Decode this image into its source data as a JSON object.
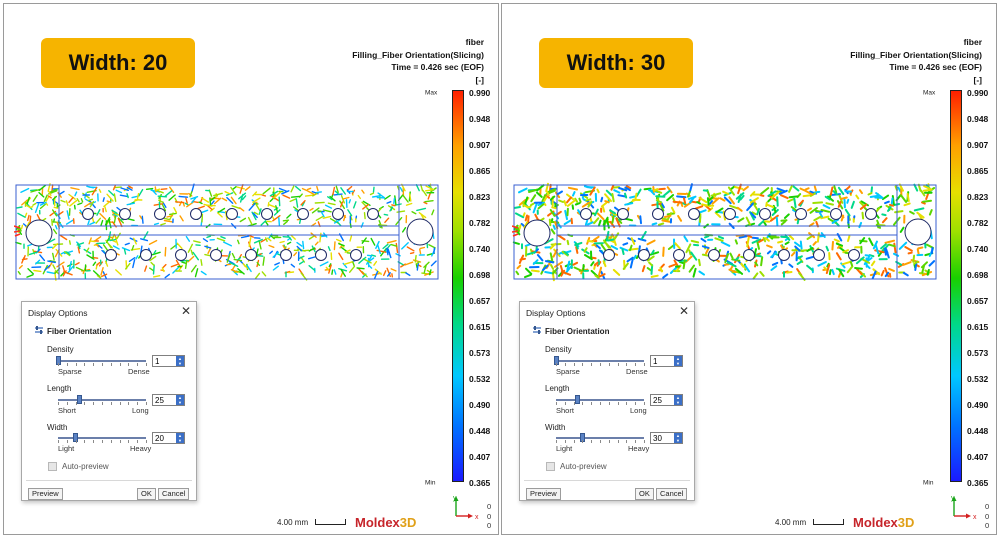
{
  "panels": [
    {
      "width_label": "Width: 20",
      "header": {
        "line1": "fiber",
        "line2": "Filling_Fiber Orientation(Slicing)",
        "line3": "Time = 0.426 sec (EOF)",
        "unit": "[-]"
      },
      "scale": {
        "max_label": "Max",
        "min_label": "Min",
        "ticks": [
          "0.990",
          "0.948",
          "0.907",
          "0.865",
          "0.823",
          "0.782",
          "0.740",
          "0.698",
          "0.657",
          "0.615",
          "0.573",
          "0.532",
          "0.490",
          "0.448",
          "0.407",
          "0.365"
        ]
      },
      "dialog": {
        "title": "Display Options",
        "close_glyph": "✕",
        "section": "Fiber Orientation",
        "density": {
          "label": "Density",
          "min_label": "Sparse",
          "max_label": "Dense",
          "value": "1",
          "fraction": 0.0
        },
        "length": {
          "label": "Length",
          "min_label": "Short",
          "max_label": "Long",
          "value": "25",
          "fraction": 0.24
        },
        "width": {
          "label": "Width",
          "min_label": "Light",
          "max_label": "Heavy",
          "value": "20",
          "fraction": 0.19
        },
        "auto_preview": "Auto-preview",
        "preview_button": "Preview",
        "ok_button": "OK",
        "cancel_button": "Cancel"
      },
      "axis": {
        "y": "y",
        "x": "x"
      },
      "coords": [
        "0",
        "0",
        "0"
      ],
      "ruler_label": "4.00 mm",
      "logo": {
        "main": "Moldex",
        "accent": "3D"
      }
    },
    {
      "width_label": "Width: 30",
      "header": {
        "line1": "fiber",
        "line2": "Filling_Fiber Orientation(Slicing)",
        "line3": "Time = 0.426 sec (EOF)",
        "unit": "[-]"
      },
      "scale": {
        "max_label": "Max",
        "min_label": "Min",
        "ticks": [
          "0.990",
          "0.948",
          "0.907",
          "0.865",
          "0.823",
          "0.782",
          "0.740",
          "0.698",
          "0.657",
          "0.615",
          "0.573",
          "0.532",
          "0.490",
          "0.448",
          "0.407",
          "0.365"
        ]
      },
      "dialog": {
        "title": "Display Options",
        "close_glyph": "✕",
        "section": "Fiber Orientation",
        "density": {
          "label": "Density",
          "min_label": "Sparse",
          "max_label": "Dense",
          "value": "1",
          "fraction": 0.0
        },
        "length": {
          "label": "Length",
          "min_label": "Short",
          "max_label": "Long",
          "value": "25",
          "fraction": 0.24
        },
        "width": {
          "label": "Width",
          "min_label": "Light",
          "max_label": "Heavy",
          "value": "30",
          "fraction": 0.29
        },
        "auto_preview": "Auto-preview",
        "preview_button": "Preview",
        "ok_button": "OK",
        "cancel_button": "Cancel"
      },
      "axis": {
        "y": "y",
        "x": "x"
      },
      "coords": [
        "0",
        "0",
        "0"
      ],
      "ruler_label": "4.00 mm",
      "logo": {
        "main": "Moldex",
        "accent": "3D"
      }
    }
  ],
  "colors": {
    "label_bg": "#f6b400",
    "part_outline": "#3a5fd0",
    "logo_red": "#c6242a",
    "logo_yellow": "#e0a018"
  },
  "fiber_palette": [
    "#19d000",
    "#5ad600",
    "#9ee000",
    "#00d88a",
    "#00c8ff",
    "#e6e000",
    "#ffa000",
    "#ff6a00",
    "#0072ff"
  ]
}
